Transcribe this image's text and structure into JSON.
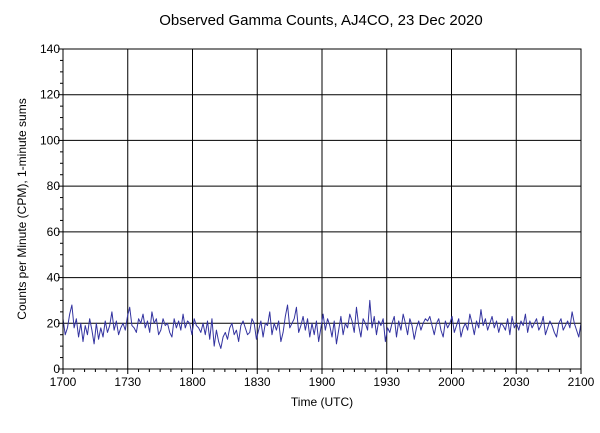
{
  "chart_data": {
    "type": "line",
    "title": "Observed Gamma Counts, AJ4CO, 23 Dec 2020",
    "xlabel": "Time (UTC)",
    "ylabel": "Counts per Minute (CPM), 1-minute sums",
    "x_tick_labels": [
      "1700",
      "1730",
      "1800",
      "1830",
      "1900",
      "1930",
      "2000",
      "2030",
      "2100"
    ],
    "y_tick_labels": [
      "0",
      "20",
      "40",
      "60",
      "80",
      "100",
      "120",
      "140"
    ],
    "x_start": "1700",
    "x_end": "2100",
    "ylim": [
      0,
      140
    ],
    "grid": true,
    "colors": {
      "line": "#3333a0",
      "grid": "#000000",
      "axis": "#000000"
    },
    "series": [
      {
        "values": [
          22,
          15,
          18,
          24,
          28,
          18,
          22,
          14,
          20,
          12,
          19,
          15,
          22,
          17,
          11,
          20,
          13,
          18,
          14,
          21,
          16,
          19,
          25,
          17,
          21,
          15,
          18,
          20,
          17,
          23,
          27,
          19,
          18,
          16,
          22,
          20,
          24,
          18,
          21,
          16,
          25,
          20,
          22,
          15,
          17,
          22,
          19,
          20,
          16,
          14,
          22,
          18,
          21,
          17,
          24,
          18,
          21,
          20,
          15,
          22,
          19,
          18,
          16,
          20,
          15,
          21,
          13,
          22,
          10,
          17,
          12,
          9,
          14,
          16,
          13,
          18,
          20,
          15,
          17,
          12,
          19,
          21,
          18,
          15,
          16,
          22,
          20,
          13,
          17,
          21,
          14,
          20,
          19,
          25,
          15,
          20,
          17,
          21,
          12,
          16,
          23,
          28,
          18,
          20,
          22,
          27,
          16,
          19,
          23,
          17,
          22,
          14,
          20,
          15,
          21,
          12,
          18,
          24,
          17,
          22,
          19,
          14,
          21,
          11,
          17,
          23,
          15,
          20,
          18,
          24,
          21,
          16,
          27,
          19,
          14,
          22,
          20,
          17,
          30,
          18,
          23,
          15,
          21,
          19,
          22,
          12,
          18,
          16,
          20,
          23,
          14,
          21,
          17,
          24,
          20,
          15,
          22,
          19,
          13,
          18,
          21,
          17,
          20,
          22,
          21,
          23,
          19,
          15,
          20,
          22,
          17,
          14,
          21,
          18,
          20,
          23,
          16,
          19,
          22,
          14,
          18,
          20,
          17,
          24,
          20,
          15,
          21,
          18,
          26,
          19,
          22,
          17,
          20,
          23,
          18,
          21,
          16,
          20,
          19,
          17,
          22,
          15,
          23,
          18,
          20,
          17,
          21,
          19,
          24,
          16,
          21,
          18,
          20,
          22,
          17,
          19,
          23,
          15,
          18,
          21,
          19,
          16,
          14,
          20,
          22,
          17,
          19,
          21,
          18,
          25,
          20,
          17,
          14,
          20
        ]
      }
    ]
  }
}
